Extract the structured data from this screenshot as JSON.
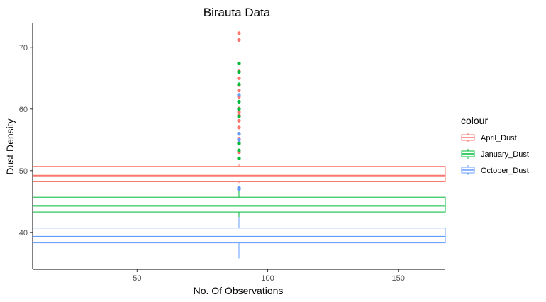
{
  "chart_data": {
    "type": "boxplot",
    "title": "Birauta  Data",
    "xlabel": "No. Of Observations",
    "ylabel": "Dust Density",
    "xlim": [
      10,
      168
    ],
    "ylim": [
      34,
      74
    ],
    "x_ticks": [
      50,
      100,
      150
    ],
    "y_ticks": [
      40,
      50,
      60,
      70
    ],
    "grid": false,
    "legend": {
      "title": "colour",
      "position": "right"
    },
    "box_x_range": [
      10,
      168
    ],
    "outlier_x": 89,
    "series": [
      {
        "name": "April_Dust",
        "color": "#F8766D",
        "whisker_low": 48.0,
        "q1": 48.2,
        "median": 49.2,
        "q3": 50.7,
        "whisker_high": 51.0,
        "outliers": [
          72.3,
          71.2,
          66.1,
          65.0,
          63.9,
          63.0,
          62.0,
          60.1,
          59.5,
          59.0,
          58.1,
          57.0,
          56.0,
          55.2,
          54.5,
          53.0
        ]
      },
      {
        "name": "January_Dust",
        "color": "#00BA38",
        "whisker_low": 41.0,
        "q1": 43.3,
        "median": 44.3,
        "q3": 45.7,
        "whisker_high": 47.0,
        "outliers": [
          67.4,
          66.0,
          64.0,
          61.2,
          60.0,
          58.8,
          54.4,
          53.3,
          52.0
        ]
      },
      {
        "name": "October_Dust",
        "color": "#619CFF",
        "whisker_low": 35.8,
        "q1": 38.3,
        "median": 39.3,
        "q3": 40.7,
        "whisker_high": 42.5,
        "outliers": [
          62.3,
          56.0,
          55.0,
          47.2,
          47.0
        ]
      }
    ]
  }
}
